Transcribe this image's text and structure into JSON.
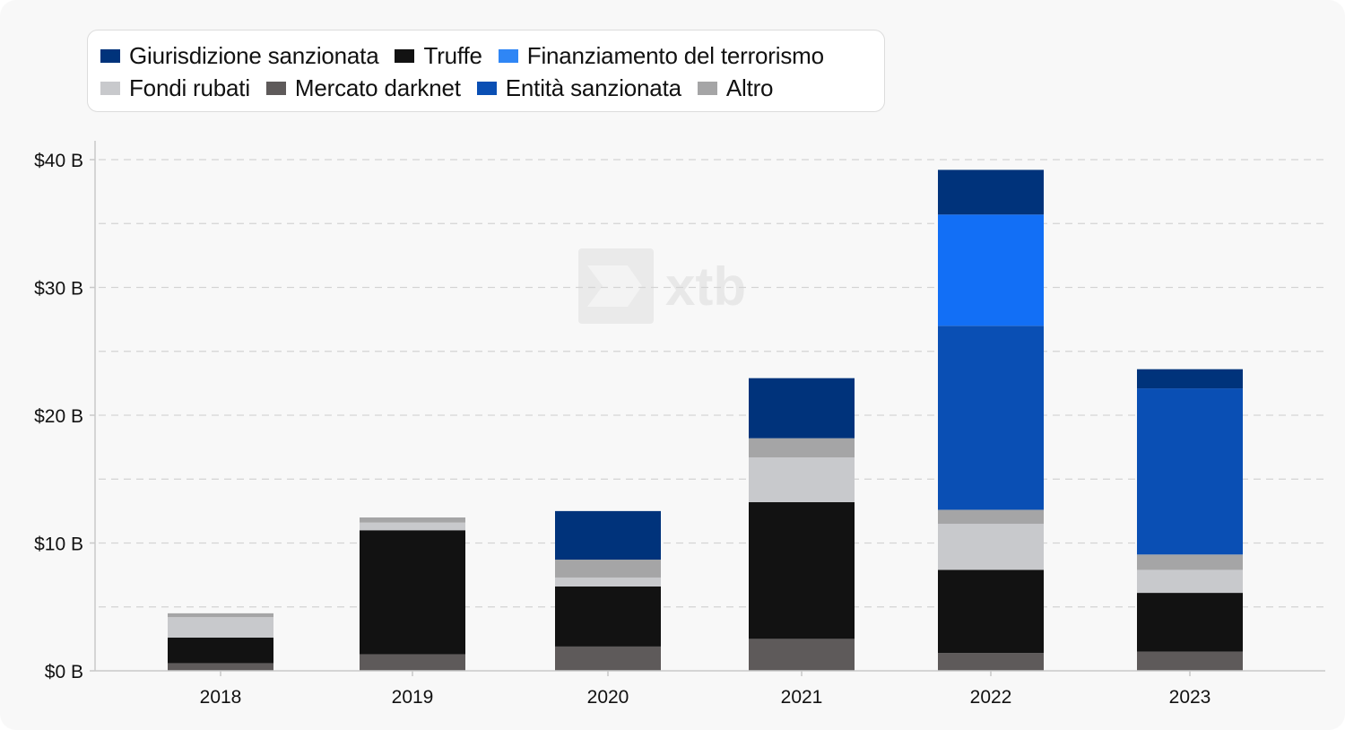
{
  "chart_data": {
    "type": "bar",
    "stacked": true,
    "categories": [
      "2018",
      "2019",
      "2020",
      "2021",
      "2022",
      "2023"
    ],
    "y_ticks": [
      "$0 B",
      "$10 B",
      "$20 B",
      "$30 B",
      "$40 B"
    ],
    "ylim": [
      0,
      41.5
    ],
    "grid": true,
    "legend_position": "top-left",
    "watermark": "xtb",
    "series": [
      {
        "name": "Mercato darknet",
        "color": "#5e5a5a",
        "values": [
          0.6,
          1.3,
          1.9,
          2.5,
          1.4,
          1.5
        ]
      },
      {
        "name": "Truffe",
        "color": "#121212",
        "values": [
          2.0,
          9.7,
          4.7,
          10.7,
          6.5,
          4.6
        ]
      },
      {
        "name": "Fondi rubati",
        "color": "#c8c9cc",
        "values": [
          1.6,
          0.6,
          0.7,
          3.5,
          3.6,
          1.8
        ]
      },
      {
        "name": "Altro",
        "color": "#a5a5a6",
        "values": [
          0.3,
          0.4,
          1.4,
          1.5,
          1.1,
          1.2
        ]
      },
      {
        "name": "Entità sanzionata",
        "color": "#0a4fb4",
        "values": [
          0,
          0,
          0,
          0,
          14.4,
          13.0
        ]
      },
      {
        "name": "Finanziamento del terrorismo",
        "color": "#126ff6",
        "values": [
          0,
          0,
          0,
          0,
          8.7,
          0
        ]
      },
      {
        "name": "Giurisdizione sanzionata",
        "color": "#00337b",
        "values": [
          0,
          0,
          3.8,
          4.7,
          3.5,
          1.5
        ]
      }
    ]
  },
  "legend": {
    "rows": [
      [
        {
          "label": "Giurisdizione sanzionata",
          "color": "#00337b"
        },
        {
          "label": "Truffe",
          "color": "#121212"
        },
        {
          "label": "Finanziamento del terrorismo",
          "color": "#2f86f5"
        }
      ],
      [
        {
          "label": "Fondi rubati",
          "color": "#c8c9cc"
        },
        {
          "label": "Mercato darknet",
          "color": "#5e5a5a"
        },
        {
          "label": "Entità sanzionata",
          "color": "#0a4fb4"
        },
        {
          "label": "Altro",
          "color": "#a5a5a6"
        }
      ]
    ]
  }
}
